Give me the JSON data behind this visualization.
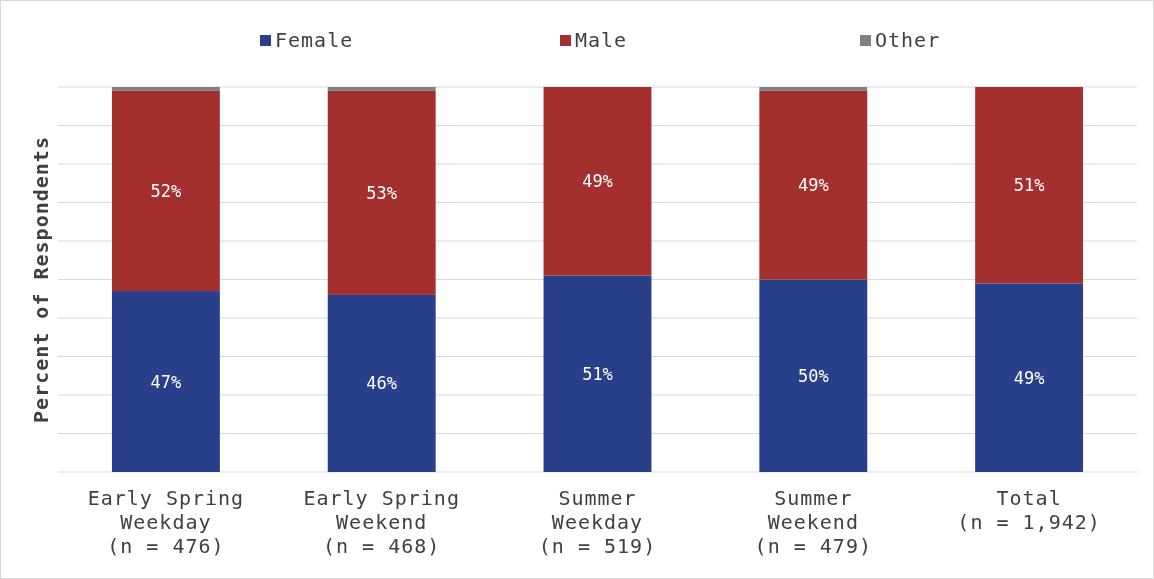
{
  "chart_data": {
    "type": "bar",
    "stacked": true,
    "ylabel": "Percent of Respondents",
    "categories": [
      "Early Spring\nWeekday\n(n = 476)",
      "Early Spring\nWeekend\n(n = 468)",
      "Summer\nWeekday\n(n = 519)",
      "Summer\nWeekend\n(n = 479)",
      "Total\n(n = 1,942)"
    ],
    "series": [
      {
        "name": "Female",
        "color": "#2a3f8a",
        "values": [
          47,
          46,
          51,
          50,
          49
        ],
        "value_labels": [
          "47%",
          "46%",
          "51%",
          "50%",
          "49%"
        ]
      },
      {
        "name": "Male",
        "color": "#a32f2f",
        "values": [
          52,
          53,
          49,
          49,
          51
        ],
        "value_labels": [
          "52%",
          "53%",
          "49%",
          "49%",
          "51%"
        ]
      },
      {
        "name": "Other",
        "color": "#808080",
        "values": [
          1,
          1,
          0,
          1,
          0
        ]
      }
    ],
    "ylim": [
      0,
      100
    ],
    "yticks": [
      {
        "value": 0,
        "label": null
      },
      {
        "value": 10,
        "label": null
      },
      {
        "value": 20,
        "label": null
      },
      {
        "value": 30,
        "label": null
      },
      {
        "value": 40,
        "label": null
      },
      {
        "value": 50,
        "label": null
      },
      {
        "value": 60,
        "label": null
      },
      {
        "value": 70,
        "label": null
      },
      {
        "value": 80,
        "label": null
      },
      {
        "value": 90,
        "label": null
      },
      {
        "value": 100,
        "label": null
      }
    ],
    "tick_labels": "x",
    "grid": "y",
    "legend": "top"
  }
}
